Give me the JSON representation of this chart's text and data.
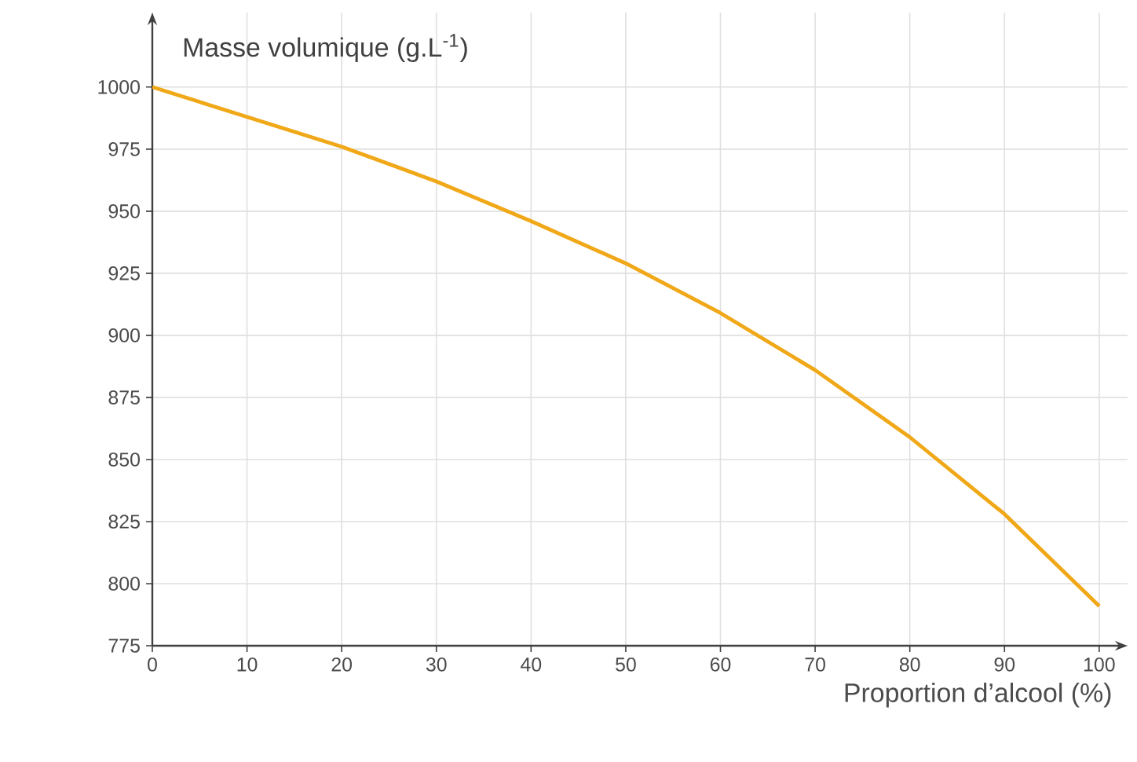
{
  "chart_data": {
    "type": "line",
    "xlabel": "Proportion d’alcool (%)",
    "ylabel": "Masse volumique (g.L$^{-1}$)",
    "x": [
      0,
      10,
      20,
      30,
      40,
      50,
      60,
      70,
      80,
      90,
      100
    ],
    "series": [
      {
        "color": "#f0a818",
        "values": [
          1000,
          988,
          976,
          962,
          946,
          929,
          909,
          886,
          859,
          828,
          791
        ]
      }
    ],
    "xlim": [
      0,
      103
    ],
    "ylim": [
      775,
      1030
    ],
    "xticks": [
      0,
      10,
      20,
      30,
      40,
      50,
      60,
      70,
      80,
      90,
      100
    ],
    "yticks": [
      775,
      800,
      825,
      850,
      875,
      900,
      925,
      950,
      975,
      1000
    ],
    "grid": true,
    "marker": "none",
    "line_style": "solid"
  }
}
